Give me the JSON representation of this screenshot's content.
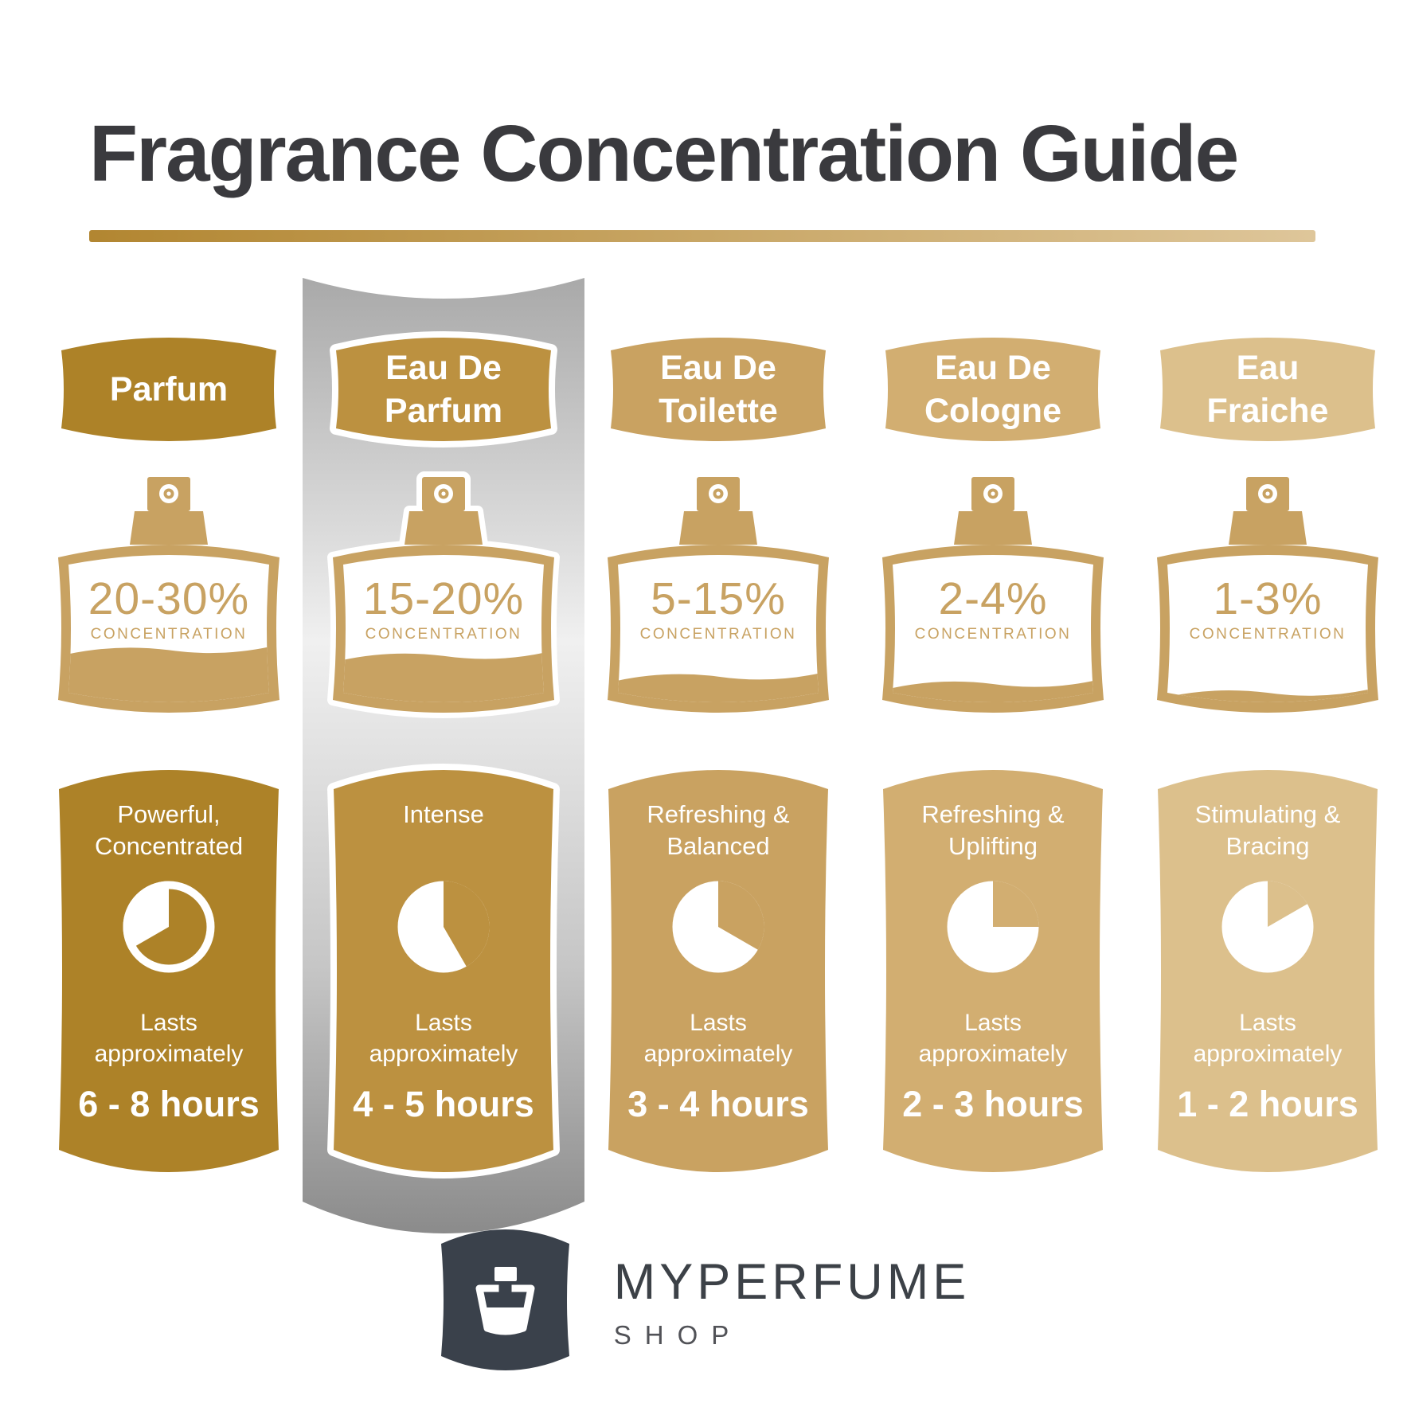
{
  "title": "Fragrance Concentration Guide",
  "theme": {
    "title_color": "#3A3A3E",
    "accent_from": "#B28631",
    "accent_to": "#DEC69A",
    "bottle_color": "#C8A262",
    "highlight_silver": [
      "#A9A9A9",
      "#F0F0F0",
      "#C6C6C6",
      "#8B8B8B"
    ],
    "background": "#FFFFFF"
  },
  "columns": [
    {
      "id": "parfum",
      "name_lines": [
        "Parfum"
      ],
      "concentration": "20-30%",
      "concentration_label": "CONCENTRATION",
      "liquid_fill": 0.36,
      "strength_lines": [
        "Powerful,",
        "Concentrated"
      ],
      "lasts_lines": [
        "Lasts",
        "approximately"
      ],
      "duration": "6 - 8 hours",
      "color": "#AD8228",
      "clock_degrees": 240,
      "clock_style": "ring",
      "highlighted": false
    },
    {
      "id": "eau-de-parfum",
      "name_lines": [
        "Eau De",
        "Parfum"
      ],
      "concentration": "15-20%",
      "concentration_label": "CONCENTRATION",
      "liquid_fill": 0.32,
      "strength_lines": [
        "Intense"
      ],
      "lasts_lines": [
        "Lasts",
        "approximately"
      ],
      "duration": "4 - 5 hours",
      "color": "#BC9140",
      "clock_degrees": 150,
      "clock_style": "disc",
      "highlighted": true
    },
    {
      "id": "eau-de-toilette",
      "name_lines": [
        "Eau De",
        "Toilette"
      ],
      "concentration": "5-15%",
      "concentration_label": "CONCENTRATION",
      "liquid_fill": 0.18,
      "strength_lines": [
        "Refreshing &",
        "Balanced"
      ],
      "lasts_lines": [
        "Lasts",
        "approximately"
      ],
      "duration": "3 - 4 hours",
      "color": "#C9A261",
      "clock_degrees": 120,
      "clock_style": "disc",
      "highlighted": false
    },
    {
      "id": "eau-de-cologne",
      "name_lines": [
        "Eau De",
        "Cologne"
      ],
      "concentration": "2-4%",
      "concentration_label": "CONCENTRATION",
      "liquid_fill": 0.13,
      "strength_lines": [
        "Refreshing &",
        "Uplifting"
      ],
      "lasts_lines": [
        "Lasts",
        "approximately"
      ],
      "duration": "2 - 3 hours",
      "color": "#D2AE71",
      "clock_degrees": 90,
      "clock_style": "disc",
      "highlighted": false
    },
    {
      "id": "eau-fraiche",
      "name_lines": [
        "Eau",
        "Fraiche"
      ],
      "concentration": "1-3%",
      "concentration_label": "CONCENTRATION",
      "liquid_fill": 0.07,
      "strength_lines": [
        "Stimulating &",
        "Bracing"
      ],
      "lasts_lines": [
        "Lasts",
        "approximately"
      ],
      "duration": "1 - 2 hours",
      "color": "#DCC08C",
      "clock_degrees": 60,
      "clock_style": "disc",
      "highlighted": false
    }
  ],
  "brand": {
    "name": "MYPERFUME",
    "sub": "SHOP",
    "logo_color": "#3A414B",
    "name_color": "#3C4147",
    "sub_color": "#515257"
  }
}
